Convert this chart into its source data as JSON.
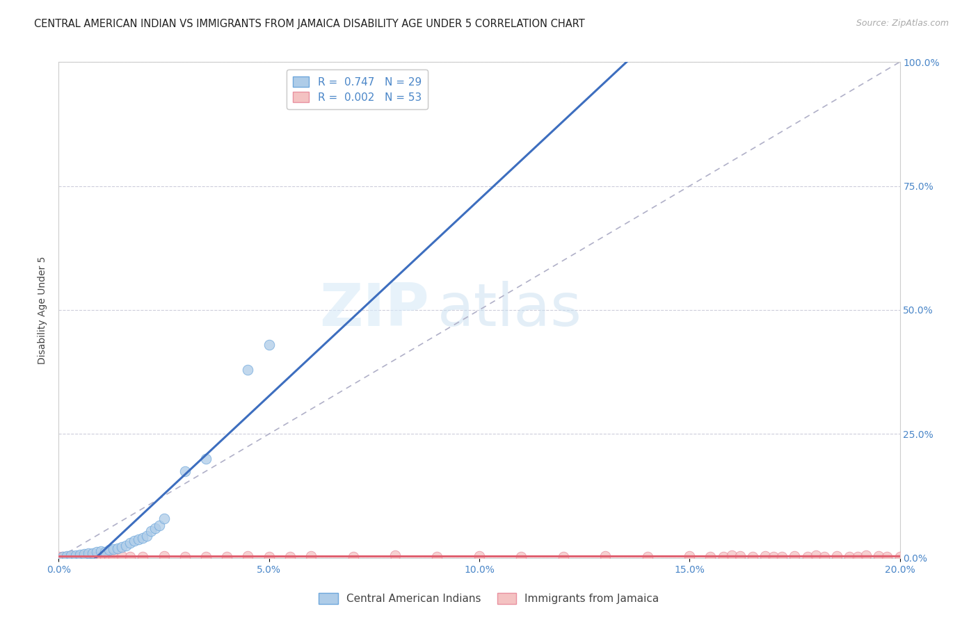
{
  "title": "CENTRAL AMERICAN INDIAN VS IMMIGRANTS FROM JAMAICA DISABILITY AGE UNDER 5 CORRELATION CHART",
  "source": "Source: ZipAtlas.com",
  "ylabel": "Disability Age Under 5",
  "xlim": [
    0.0,
    0.2
  ],
  "ylim": [
    0.0,
    1.0
  ],
  "xticks": [
    0.0,
    0.05,
    0.1,
    0.15,
    0.2
  ],
  "xtick_labels": [
    "0.0%",
    "5.0%",
    "10.0%",
    "15.0%",
    "20.0%"
  ],
  "yticks": [
    0.0,
    0.25,
    0.5,
    0.75,
    1.0
  ],
  "ytick_labels": [
    "0.0%",
    "25.0%",
    "50.0%",
    "75.0%",
    "100.0%"
  ],
  "blue_scatter_color": "#aecce8",
  "blue_scatter_edge": "#6fa8dc",
  "pink_scatter_color": "#f4c2c2",
  "pink_scatter_edge": "#e991a0",
  "blue_line_color": "#3d6ebf",
  "pink_line_color": "#e06070",
  "ref_line_color": "#b0b0c8",
  "tick_color": "#4a86c8",
  "legend1_label": "R =  0.747   N = 29",
  "legend2_label": "R =  0.002   N = 53",
  "legend_bottom1": "Central American Indians",
  "legend_bottom2": "Immigrants from Jamaica",
  "watermark_zip": "ZIP",
  "watermark_atlas": "atlas",
  "title_fontsize": 10.5,
  "axis_label_fontsize": 10,
  "tick_fontsize": 10,
  "source_fontsize": 9,
  "legend_fontsize": 11,
  "background_color": "#ffffff",
  "grid_color": "#c8c8d8",
  "blue_scatter_x": [
    0.001,
    0.002,
    0.003,
    0.004,
    0.005,
    0.006,
    0.007,
    0.008,
    0.009,
    0.01,
    0.011,
    0.012,
    0.013,
    0.014,
    0.015,
    0.016,
    0.017,
    0.018,
    0.019,
    0.02,
    0.021,
    0.022,
    0.023,
    0.024,
    0.025,
    0.03,
    0.035,
    0.045,
    0.05
  ],
  "blue_scatter_y": [
    0.003,
    0.004,
    0.005,
    0.006,
    0.007,
    0.008,
    0.01,
    0.009,
    0.012,
    0.014,
    0.013,
    0.016,
    0.018,
    0.02,
    0.022,
    0.025,
    0.03,
    0.035,
    0.038,
    0.04,
    0.045,
    0.055,
    0.06,
    0.065,
    0.08,
    0.175,
    0.2,
    0.38,
    0.43
  ],
  "pink_scatter_x": [
    0.0,
    0.001,
    0.002,
    0.003,
    0.004,
    0.005,
    0.006,
    0.007,
    0.008,
    0.009,
    0.01,
    0.011,
    0.012,
    0.013,
    0.015,
    0.017,
    0.02,
    0.025,
    0.03,
    0.035,
    0.04,
    0.045,
    0.05,
    0.055,
    0.06,
    0.07,
    0.08,
    0.09,
    0.1,
    0.11,
    0.12,
    0.13,
    0.14,
    0.15,
    0.155,
    0.158,
    0.16,
    0.162,
    0.165,
    0.168,
    0.17,
    0.172,
    0.175,
    0.178,
    0.18,
    0.182,
    0.185,
    0.188,
    0.19,
    0.192,
    0.195,
    0.197,
    0.2
  ],
  "pink_scatter_y": [
    0.002,
    0.003,
    0.002,
    0.004,
    0.003,
    0.002,
    0.005,
    0.004,
    0.003,
    0.002,
    0.004,
    0.003,
    0.002,
    0.003,
    0.004,
    0.003,
    0.002,
    0.004,
    0.003,
    0.003,
    0.002,
    0.004,
    0.003,
    0.002,
    0.004,
    0.003,
    0.005,
    0.003,
    0.004,
    0.003,
    0.002,
    0.004,
    0.003,
    0.004,
    0.003,
    0.002,
    0.005,
    0.004,
    0.003,
    0.004,
    0.002,
    0.003,
    0.004,
    0.003,
    0.005,
    0.003,
    0.004,
    0.002,
    0.003,
    0.005,
    0.004,
    0.003,
    0.002
  ]
}
